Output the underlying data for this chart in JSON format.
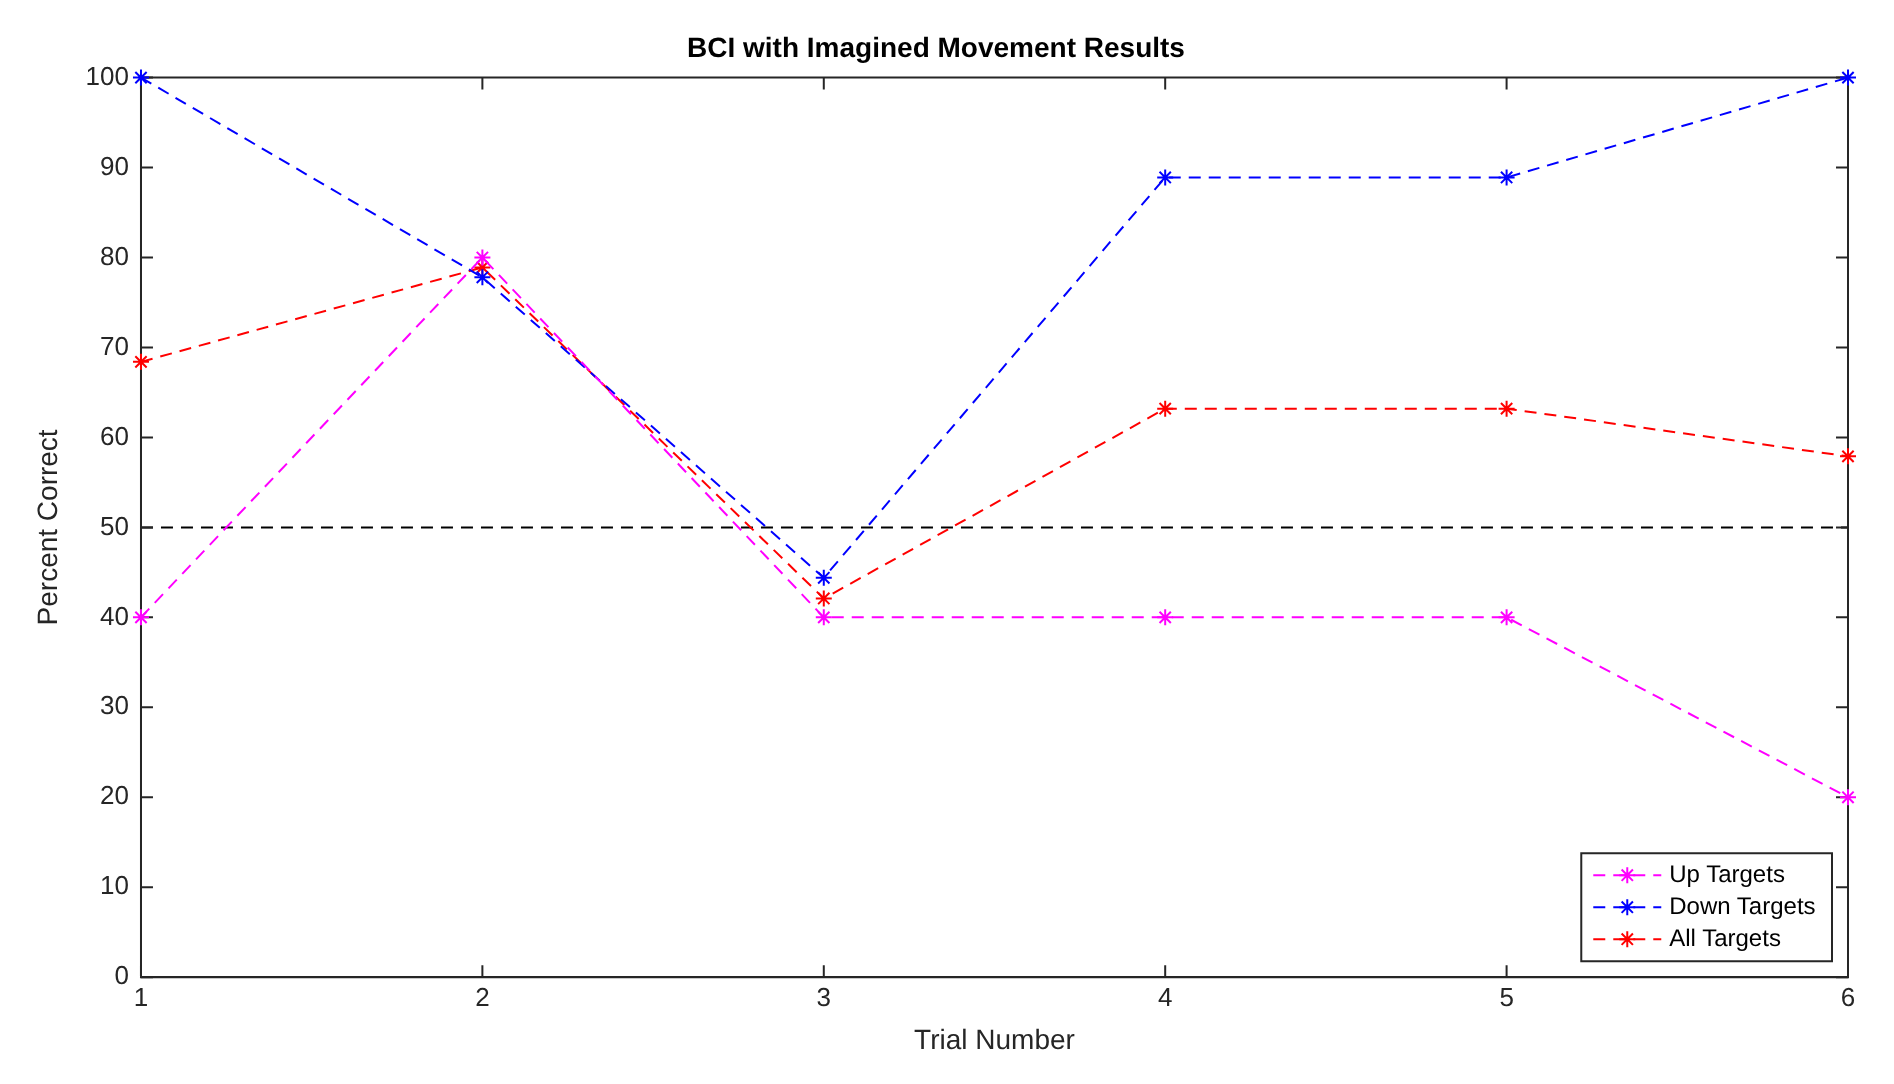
{
  "chart_data": {
    "type": "line",
    "title": "BCI with Imagined Movement Results",
    "xlabel": "Trial Number",
    "ylabel": "Percent Correct",
    "x": [
      1,
      2,
      3,
      4,
      5,
      6
    ],
    "series": [
      {
        "name": "Up Targets",
        "color": "#ff00ff",
        "values": [
          40,
          80,
          40,
          40,
          40,
          20
        ]
      },
      {
        "name": "Down Targets",
        "color": "#0000ff",
        "values": [
          100,
          77.8,
          44.4,
          88.9,
          88.9,
          100
        ]
      },
      {
        "name": "All Targets",
        "color": "#ff0000",
        "values": [
          68.4,
          78.9,
          42.1,
          63.2,
          63.2,
          57.9
        ]
      }
    ],
    "xlim": [
      1,
      6
    ],
    "xticks": [
      1,
      2,
      3,
      4,
      5,
      6
    ],
    "ylim": [
      0,
      100
    ],
    "yticks": [
      0,
      10,
      20,
      30,
      40,
      50,
      60,
      70,
      80,
      90,
      100
    ],
    "ref_lines": [
      {
        "axis": "y",
        "value": 50,
        "color": "#000000",
        "line_style": "dashed"
      }
    ],
    "grid": false,
    "legend": "bottom right",
    "marker": "cross",
    "line_style": "dashed"
  }
}
